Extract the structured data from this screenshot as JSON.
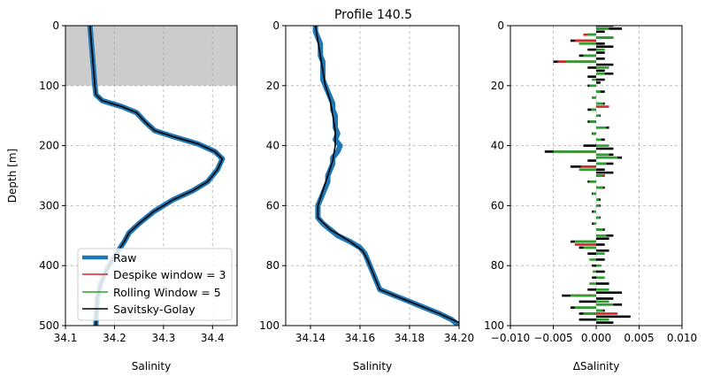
{
  "figure": {
    "title": "Profile 140.5"
  },
  "colors": {
    "raw": "#1f77b4",
    "despike": "#d62728",
    "rolling": "#2ca02c",
    "savgol": "#000000",
    "shade": "#cccccc",
    "grid": "#b0b0b0"
  },
  "legend": {
    "location": "lower-right of left panel",
    "entries": [
      {
        "label": "Raw",
        "color": "#1f77b4",
        "width": 4.5
      },
      {
        "label": "Despike window = 3",
        "color": "#d62728",
        "width": 1.5
      },
      {
        "label": "Rolling Window = 5",
        "color": "#2ca02c",
        "width": 1.5
      },
      {
        "label": "Savitsky-Golay",
        "color": "#000000",
        "width": 1.5
      }
    ]
  },
  "chart_data": [
    {
      "type": "line",
      "panel": "left",
      "xlabel": "Salinity",
      "ylabel": "Depth [m]",
      "xlim": [
        34.1,
        34.45
      ],
      "ylim": [
        500,
        0
      ],
      "xticks": [
        "34.1",
        "34.2",
        "34.3",
        "34.4"
      ],
      "yticks": [
        "0",
        "100",
        "200",
        "300",
        "400",
        "500"
      ],
      "grid": true,
      "shaded_depth_range": [
        0,
        100
      ],
      "series": [
        {
          "name": "Raw",
          "points": [
            [
              34.15,
              0
            ],
            [
              34.152,
              20
            ],
            [
              34.154,
              40
            ],
            [
              34.156,
              60
            ],
            [
              34.158,
              80
            ],
            [
              34.16,
              100
            ],
            [
              34.162,
              115
            ],
            [
              34.175,
              125
            ],
            [
              34.215,
              135
            ],
            [
              34.245,
              145
            ],
            [
              34.262,
              160
            ],
            [
              34.282,
              175
            ],
            [
              34.32,
              185
            ],
            [
              34.37,
              197
            ],
            [
              34.405,
              210
            ],
            [
              34.42,
              222
            ],
            [
              34.41,
              240
            ],
            [
              34.39,
              260
            ],
            [
              34.36,
              275
            ],
            [
              34.32,
              290
            ],
            [
              34.28,
              310
            ],
            [
              34.25,
              330
            ],
            [
              34.23,
              345
            ],
            [
              34.22,
              360
            ],
            [
              34.2,
              385
            ],
            [
              34.185,
              405
            ],
            [
              34.172,
              430
            ],
            [
              34.165,
              455
            ],
            [
              34.163,
              480
            ],
            [
              34.162,
              500
            ]
          ]
        },
        {
          "name": "Savitsky-Golay",
          "points": [
            [
              34.15,
              0
            ],
            [
              34.152,
              20
            ],
            [
              34.154,
              40
            ],
            [
              34.156,
              60
            ],
            [
              34.158,
              80
            ],
            [
              34.16,
              100
            ],
            [
              34.162,
              115
            ],
            [
              34.175,
              125
            ],
            [
              34.215,
              135
            ],
            [
              34.245,
              145
            ],
            [
              34.262,
              160
            ],
            [
              34.282,
              175
            ],
            [
              34.32,
              185
            ],
            [
              34.37,
              197
            ],
            [
              34.405,
              210
            ],
            [
              34.42,
              222
            ],
            [
              34.41,
              240
            ],
            [
              34.39,
              260
            ],
            [
              34.36,
              275
            ],
            [
              34.32,
              290
            ],
            [
              34.28,
              310
            ],
            [
              34.25,
              330
            ],
            [
              34.23,
              345
            ],
            [
              34.22,
              360
            ],
            [
              34.2,
              385
            ],
            [
              34.185,
              405
            ],
            [
              34.172,
              430
            ],
            [
              34.165,
              455
            ],
            [
              34.163,
              480
            ],
            [
              34.162,
              500
            ]
          ]
        }
      ]
    },
    {
      "type": "line",
      "panel": "middle",
      "xlabel": "Salinity",
      "ylabel": "",
      "xlim": [
        34.13,
        34.2
      ],
      "ylim": [
        100,
        0
      ],
      "xticks": [
        "34.14",
        "34.16",
        "34.18",
        "34.20"
      ],
      "yticks": [
        "0",
        "20",
        "40",
        "60",
        "80",
        "100"
      ],
      "grid": true,
      "series": [
        {
          "name": "Raw",
          "points": [
            [
              34.142,
              0
            ],
            [
              34.142,
              2
            ],
            [
              34.143,
              4
            ],
            [
              34.144,
              6
            ],
            [
              34.144,
              8
            ],
            [
              34.144,
              10
            ],
            [
              34.145,
              12
            ],
            [
              34.145,
              14
            ],
            [
              34.145,
              16
            ],
            [
              34.145,
              18
            ],
            [
              34.146,
              20
            ],
            [
              34.147,
              22
            ],
            [
              34.148,
              24
            ],
            [
              34.149,
              26
            ],
            [
              34.149,
              28
            ],
            [
              34.15,
              30
            ],
            [
              34.15,
              32
            ],
            [
              34.15,
              34
            ],
            [
              34.151,
              36
            ],
            [
              34.15,
              38
            ],
            [
              34.152,
              40
            ],
            [
              34.151,
              42
            ],
            [
              34.149,
              44
            ],
            [
              34.149,
              46
            ],
            [
              34.148,
              48
            ],
            [
              34.147,
              50
            ],
            [
              34.147,
              52
            ],
            [
              34.146,
              54
            ],
            [
              34.145,
              56
            ],
            [
              34.144,
              58
            ],
            [
              34.143,
              60
            ],
            [
              34.143,
              62
            ],
            [
              34.143,
              64
            ],
            [
              34.145,
              66
            ],
            [
              34.148,
              68
            ],
            [
              34.151,
              70
            ],
            [
              34.156,
              72
            ],
            [
              34.16,
              74
            ],
            [
              34.162,
              76
            ],
            [
              34.163,
              78
            ],
            [
              34.164,
              80
            ],
            [
              34.165,
              82
            ],
            [
              34.166,
              84
            ],
            [
              34.167,
              86
            ],
            [
              34.168,
              88
            ],
            [
              34.174,
              90
            ],
            [
              34.18,
              92
            ],
            [
              34.186,
              94
            ],
            [
              34.192,
              96
            ],
            [
              34.197,
              98
            ],
            [
              34.2,
              100
            ]
          ]
        },
        {
          "name": "Savitsky-Golay",
          "points": [
            [
              34.142,
              0
            ],
            [
              34.143,
              5
            ],
            [
              34.144,
              10
            ],
            [
              34.145,
              15
            ],
            [
              34.146,
              20
            ],
            [
              34.148,
              25
            ],
            [
              34.149,
              30
            ],
            [
              34.15,
              35
            ],
            [
              34.15,
              40
            ],
            [
              34.149,
              45
            ],
            [
              34.147,
              50
            ],
            [
              34.145,
              55
            ],
            [
              34.143,
              60
            ],
            [
              34.143,
              64
            ],
            [
              34.148,
              68
            ],
            [
              34.156,
              72
            ],
            [
              34.161,
              75
            ],
            [
              34.163,
              78
            ],
            [
              34.165,
              82
            ],
            [
              34.167,
              86
            ],
            [
              34.168,
              88
            ],
            [
              34.174,
              90
            ],
            [
              34.183,
              93
            ],
            [
              34.192,
              96
            ],
            [
              34.2,
              99
            ]
          ]
        }
      ]
    },
    {
      "type": "bar",
      "panel": "right",
      "orientation": "horizontal",
      "xlabel": "ΔSalinity",
      "ylabel": "",
      "xlim": [
        -0.01,
        0.01
      ],
      "ylim": [
        100,
        0
      ],
      "xticks": [
        "−0.010",
        "−0.005",
        "0.000",
        "0.005",
        "0.010"
      ],
      "yticks": [
        "0",
        "20",
        "40",
        "60",
        "80",
        "100"
      ],
      "grid": true,
      "series": [
        {
          "name": "Savitsky-Golay",
          "depths": [
            0,
            1,
            2,
            3,
            4,
            5,
            6,
            7,
            8,
            9,
            10,
            11,
            12,
            13,
            14,
            15,
            16,
            17,
            18,
            19,
            20,
            22,
            24,
            26,
            28,
            30,
            32,
            34,
            36,
            38,
            40,
            41,
            42,
            43,
            44,
            45,
            46,
            47,
            48,
            49,
            50,
            52,
            54,
            56,
            58,
            60,
            62,
            64,
            66,
            68,
            70,
            71,
            72,
            73,
            74,
            75,
            76,
            78,
            80,
            82,
            84,
            86,
            88,
            89,
            90,
            91,
            92,
            93,
            94,
            95,
            96,
            97,
            98,
            99
          ],
          "values": [
            0.002,
            0.003,
            0.001,
            -0.001,
            0.002,
            -0.003,
            0.001,
            0.002,
            -0.001,
            0.001,
            -0.002,
            0.001,
            -0.005,
            0.002,
            -0.001,
            0.001,
            0.002,
            -0.001,
            0.001,
            0.0005,
            -0.001,
            0.001,
            -0.0005,
            0.001,
            -0.001,
            0.0005,
            -0.001,
            0.0015,
            -0.0005,
            0.001,
            -0.0015,
            0.002,
            -0.006,
            0.002,
            0.003,
            -0.001,
            0.002,
            -0.003,
            0.001,
            0.002,
            0.001,
            -0.001,
            0.001,
            -0.0005,
            0.0005,
            0.0005,
            -0.0005,
            0.0005,
            -0.0005,
            0.001,
            0.002,
            0.0015,
            -0.003,
            0.001,
            -0.002,
            0.0015,
            -0.001,
            0.001,
            -0.0005,
            0.001,
            -0.0005,
            0.0015,
            -0.001,
            0.003,
            -0.004,
            0.002,
            -0.002,
            0.003,
            -0.003,
            0.001,
            -0.002,
            0.004,
            -0.002,
            0.002
          ]
        },
        {
          "name": "Despike window = 3",
          "depths": [
            3,
            5,
            12,
            27,
            42,
            47,
            50,
            73,
            90,
            96
          ],
          "values": [
            -0.0015,
            -0.0025,
            -0.0045,
            0.0015,
            -0.0028,
            -0.0018,
            0.001,
            -0.0025,
            -0.0028,
            0.0025
          ]
        },
        {
          "name": "Rolling Window = 5",
          "depths": [
            1,
            3,
            4,
            6,
            8,
            10,
            12,
            14,
            16,
            18,
            20,
            22,
            24,
            26,
            28,
            30,
            32,
            34,
            36,
            38,
            40,
            42,
            43,
            44,
            46,
            48,
            50,
            52,
            54,
            56,
            58,
            60,
            62,
            64,
            66,
            68,
            70,
            72,
            74,
            76,
            78,
            80,
            82,
            84,
            86,
            88,
            90,
            92,
            93,
            94,
            95,
            96,
            98
          ],
          "values": [
            0.0015,
            -0.001,
            0.002,
            -0.002,
            0.001,
            -0.0015,
            -0.0035,
            0.0015,
            0.001,
            -0.0005,
            -0.0008,
            0.0005,
            -0.0005,
            0.0008,
            -0.0006,
            0.0004,
            -0.0008,
            0.0012,
            -0.0004,
            0.0006,
            0.0015,
            -0.005,
            0.0015,
            0.0025,
            0.0012,
            -0.002,
            0.0008,
            -0.0008,
            0.0008,
            -0.0004,
            0.0003,
            0.0004,
            -0.0003,
            0.0004,
            -0.0003,
            0.0008,
            0.0012,
            -0.0025,
            -0.0015,
            0.001,
            -0.0008,
            0.0006,
            -0.0004,
            0.001,
            -0.0008,
            0.0015,
            -0.003,
            0.0015,
            0.002,
            -0.0025,
            0.0008,
            -0.0015,
            0.0015
          ]
        }
      ]
    }
  ]
}
